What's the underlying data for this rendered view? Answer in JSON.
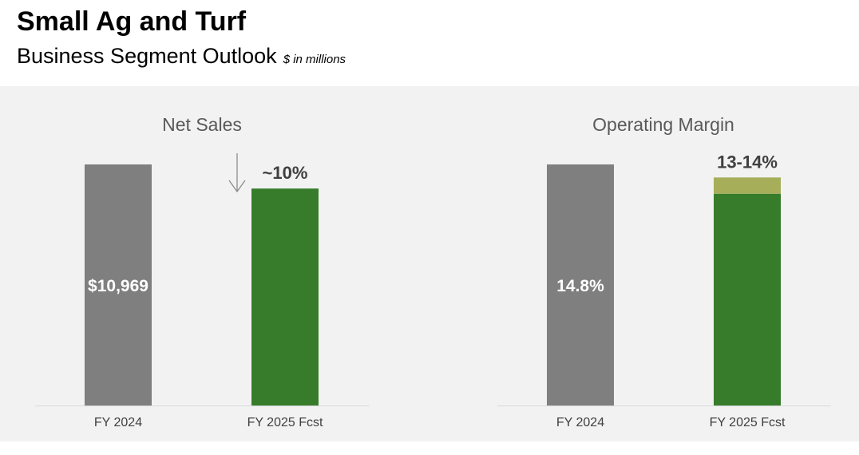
{
  "header": {
    "title": "Small Ag and Turf",
    "subtitle": "Business Segment Outlook",
    "units": "$ in millions"
  },
  "colors": {
    "prior": "#7f7f7f",
    "forecast": "#367c2b",
    "range": "#a6ae5a",
    "panel": "#f2f2f2",
    "axis": "#d9d9d9"
  },
  "chart_data": [
    {
      "type": "bar",
      "title": "Net Sales",
      "categories": [
        "FY 2024",
        "FY 2025 Fcst"
      ],
      "values": [
        10969,
        9872
      ],
      "ylim": [
        0,
        10969
      ],
      "bar_labels": [
        "$10,969",
        ""
      ],
      "annotation": "~10%",
      "change_direction": "down",
      "grid": false
    },
    {
      "type": "bar",
      "title": "Operating Margin",
      "categories": [
        "FY 2024",
        "FY 2025 Fcst"
      ],
      "values": [
        14.8,
        13
      ],
      "range_top": 14,
      "ylim": [
        0,
        14.8
      ],
      "bar_labels": [
        "14.8%",
        ""
      ],
      "annotation": "13-14%",
      "grid": false
    }
  ]
}
